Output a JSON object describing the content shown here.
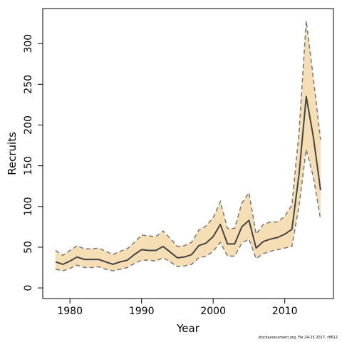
{
  "colors": {
    "band_fill": "#f5deb3",
    "band_edge": "#777777",
    "line": "#444444",
    "axis": "#000000",
    "background": "#ffffff"
  },
  "footer": "stockassessment.org,  Fle  24-25  2017,  r8612",
  "chart_data": {
    "type": "line",
    "title": "",
    "xlabel": "Year",
    "ylabel": "Recruits",
    "xlim": [
      1976.2,
      2016.8
    ],
    "ylim": [
      -13,
      343
    ],
    "xticks": [
      1980,
      1990,
      2000,
      2010
    ],
    "yticks": [
      0,
      50,
      100,
      150,
      200,
      250,
      300
    ],
    "grid": false,
    "legend": "none",
    "x": [
      1978,
      1979,
      1980,
      1981,
      1982,
      1983,
      1984,
      1985,
      1986,
      1987,
      1988,
      1989,
      1990,
      1991,
      1992,
      1993,
      1994,
      1995,
      1996,
      1997,
      1998,
      1999,
      2000,
      2001,
      2002,
      2003,
      2004,
      2005,
      2006,
      2007,
      2008,
      2009,
      2010,
      2011,
      2012,
      2013,
      2014,
      2015
    ],
    "series": [
      {
        "name": "estimate",
        "values": [
          32,
          29,
          33,
          38,
          35,
          35,
          35,
          32,
          29,
          32,
          34,
          41,
          47,
          46,
          46,
          51,
          44,
          37,
          38,
          41,
          52,
          55,
          63,
          78,
          54,
          54,
          75,
          83,
          49,
          57,
          60,
          62,
          66,
          72,
          140,
          235,
          185,
          120
        ]
      },
      {
        "name": "lower",
        "values": [
          23,
          21,
          24,
          28,
          25,
          25,
          26,
          23,
          21,
          23,
          25,
          30,
          34,
          34,
          33,
          37,
          32,
          26,
          27,
          29,
          37,
          39,
          45,
          56,
          39,
          39,
          55,
          60,
          36,
          42,
          45,
          47,
          49,
          51,
          101,
          170,
          136,
          84
        ]
      },
      {
        "name": "upper",
        "values": [
          46,
          40,
          46,
          52,
          48,
          48,
          49,
          45,
          41,
          45,
          48,
          56,
          65,
          64,
          63,
          70,
          61,
          51,
          52,
          56,
          71,
          76,
          86,
          106,
          73,
          73,
          104,
          117,
          66,
          78,
          81,
          81,
          88,
          102,
          192,
          328,
          257,
          182
        ]
      }
    ]
  }
}
